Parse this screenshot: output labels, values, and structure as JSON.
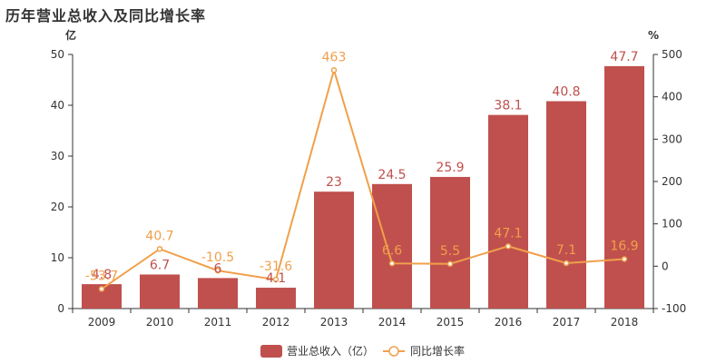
{
  "chart_data": {
    "title": "历年营业总收入及同比增长率",
    "type": "bar",
    "categories": [
      "2009",
      "2010",
      "2011",
      "2012",
      "2013",
      "2014",
      "2015",
      "2016",
      "2017",
      "2018"
    ],
    "series": [
      {
        "name": "营业总收入（亿）",
        "type": "bar",
        "axis": "left",
        "color": "#c0504d",
        "values": [
          4.8,
          6.7,
          6,
          4.1,
          23,
          24.5,
          25.9,
          38.1,
          40.8,
          47.7
        ],
        "labels": [
          "4.8",
          "6.7",
          "6",
          "4.1",
          "23",
          "24.5",
          "25.9",
          "38.1",
          "40.8",
          "47.7"
        ]
      },
      {
        "name": "同比增长率",
        "type": "line",
        "axis": "right",
        "color": "#f0a04b",
        "values": [
          -53.7,
          40.7,
          -10.5,
          -31.6,
          463,
          6.6,
          5.5,
          47.1,
          7.1,
          16.9
        ],
        "labels": [
          "-53.7",
          "40.7",
          "-10.5",
          "-31.6",
          "463",
          "6.6",
          "5.5",
          "47.1",
          "7.1",
          "16.9"
        ]
      }
    ],
    "y_left": {
      "unit": "亿",
      "ylim": [
        0,
        50
      ],
      "ticks": [
        "0",
        "10",
        "20",
        "30",
        "40",
        "50"
      ]
    },
    "y_right": {
      "unit": "%",
      "ylim": [
        -100,
        500
      ],
      "ticks": [
        "-100",
        "0",
        "100",
        "200",
        "300",
        "400",
        "500"
      ]
    },
    "grid": false,
    "legend": "bottom"
  }
}
